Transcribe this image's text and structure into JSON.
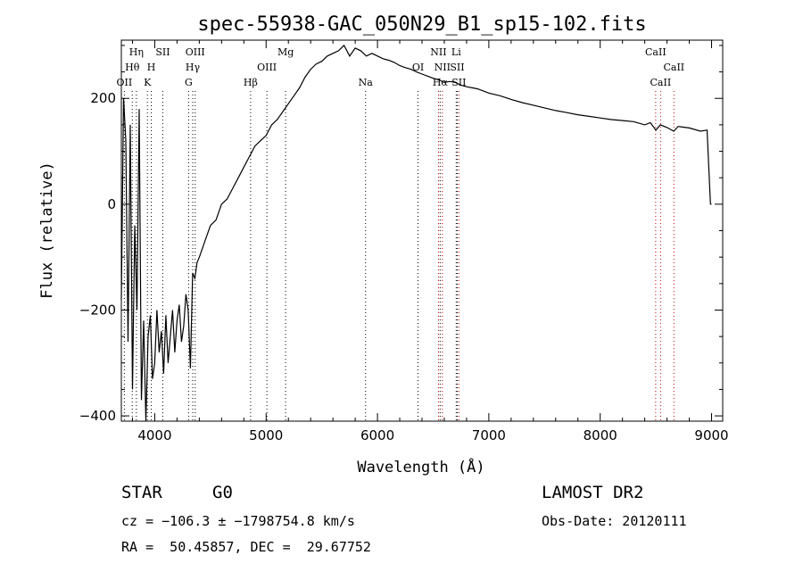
{
  "chart_data": {
    "type": "line",
    "title": "spec-55938-GAC_050N29_B1_sp15-102.fits",
    "xlabel": "Wavelength (Å)",
    "ylabel": "Flux (relative)",
    "xlim": [
      3700,
      9100
    ],
    "ylim": [
      -410,
      310
    ],
    "x_ticks": [
      4000,
      5000,
      6000,
      7000,
      8000,
      9000
    ],
    "y_ticks": [
      -400,
      -200,
      0,
      200
    ],
    "grid": false,
    "series": [
      {
        "x": [
          3700,
          3720,
          3740,
          3760,
          3780,
          3800,
          3820,
          3840,
          3860,
          3880,
          3900,
          3920,
          3940,
          3960,
          3980,
          4000,
          4020,
          4040,
          4060,
          4080,
          4100,
          4120,
          4140,
          4160,
          4180,
          4200,
          4220,
          4240,
          4260,
          4280,
          4300,
          4320,
          4340,
          4360,
          4380,
          4400,
          4450,
          4500,
          4550,
          4600,
          4650,
          4700,
          4750,
          4800,
          4850,
          4900,
          4950,
          5000,
          5050,
          5100,
          5150,
          5200,
          5250,
          5300,
          5350,
          5400,
          5450,
          5500,
          5550,
          5600,
          5650,
          5700,
          5750,
          5800,
          5850,
          5900,
          5950,
          6000,
          6050,
          6100,
          6150,
          6200,
          6250,
          6300,
          6350,
          6400,
          6450,
          6500,
          6550,
          6600,
          6650,
          6700,
          6750,
          6800,
          6850,
          6900,
          7000,
          7100,
          7200,
          7300,
          7400,
          7500,
          7600,
          7700,
          7800,
          7900,
          8000,
          8100,
          8200,
          8300,
          8400,
          8450,
          8500,
          8540,
          8600,
          8660,
          8700,
          8800,
          8900,
          8960,
          8990,
          9000
        ],
        "y": [
          -180,
          200,
          120,
          -260,
          150,
          -350,
          -40,
          -200,
          180,
          -370,
          -220,
          -410,
          -250,
          -210,
          -330,
          -300,
          -200,
          -280,
          -240,
          -320,
          -210,
          -300,
          -250,
          -200,
          -280,
          -220,
          -190,
          -260,
          -230,
          -170,
          -200,
          -310,
          -130,
          -140,
          -110,
          -100,
          -70,
          -40,
          -30,
          0,
          10,
          30,
          50,
          70,
          90,
          110,
          120,
          130,
          150,
          160,
          175,
          190,
          205,
          220,
          240,
          255,
          265,
          270,
          280,
          285,
          290,
          300,
          280,
          295,
          290,
          280,
          285,
          280,
          275,
          272,
          268,
          262,
          258,
          255,
          250,
          246,
          242,
          238,
          235,
          230,
          232,
          230,
          225,
          222,
          220,
          218,
          210,
          205,
          198,
          192,
          187,
          182,
          177,
          173,
          169,
          166,
          163,
          160,
          158,
          156,
          150,
          154,
          140,
          150,
          145,
          138,
          147,
          144,
          138,
          140,
          0,
          0
        ]
      }
    ],
    "lines": [
      {
        "name": "OII",
        "x": 3727,
        "row": 3,
        "color": "#000000"
      },
      {
        "name": "Hθ",
        "x": 3798,
        "row": 2,
        "color": "#000000"
      },
      {
        "name": "Hη",
        "x": 3835,
        "row": 1,
        "color": "#000000"
      },
      {
        "name": "K",
        "x": 3934,
        "row": 3,
        "color": "#000000"
      },
      {
        "name": "H",
        "x": 3969,
        "row": 2,
        "color": "#000000"
      },
      {
        "name": "SII",
        "x": 4072,
        "row": 1,
        "color": "#000000"
      },
      {
        "name": "G",
        "x": 4304,
        "row": 3,
        "color": "#000000"
      },
      {
        "name": "Hγ",
        "x": 4341,
        "row": 2,
        "color": "#000000"
      },
      {
        "name": "OIII",
        "x": 4363,
        "row": 1,
        "color": "#000000"
      },
      {
        "name": "Hβ",
        "x": 4861,
        "row": 3,
        "color": "#000000"
      },
      {
        "name": "OIII",
        "x": 5007,
        "row": 2,
        "color": "#000000"
      },
      {
        "name": "Mg",
        "x": 5175,
        "row": 1,
        "color": "#000000"
      },
      {
        "name": "Na",
        "x": 5893,
        "row": 3,
        "color": "#000000"
      },
      {
        "name": "OI",
        "x": 6364,
        "row": 2,
        "color": "#000000"
      },
      {
        "name": "NII",
        "x": 6548,
        "row": 1,
        "color": "#cc0000"
      },
      {
        "name": "Hα",
        "x": 6563,
        "row": 3,
        "color": "#000000"
      },
      {
        "name": "NII",
        "x": 6583,
        "row": 2,
        "color": "#cc0000"
      },
      {
        "name": "Li",
        "x": 6707,
        "row": 1,
        "color": "#000000"
      },
      {
        "name": "SII",
        "x": 6716,
        "row": 2,
        "color": "#000000"
      },
      {
        "name": "SII",
        "x": 6731,
        "row": 3,
        "color": "#cc0000"
      },
      {
        "name": "CaII",
        "x": 8498,
        "row": 1,
        "color": "#cc0000"
      },
      {
        "name": "CaII",
        "x": 8542,
        "row": 3,
        "color": "#cc0000"
      },
      {
        "name": "CaII",
        "x": 8662,
        "row": 2,
        "color": "#cc0000"
      }
    ]
  },
  "info": {
    "class_label": "STAR",
    "subclass": "G0",
    "survey": "LAMOST DR2",
    "cz": "cz = −106.3 ± −1798754.8 km/s",
    "obs_date": "Obs-Date: 20120111",
    "coords": "RA =  50.45857, DEC =  29.67752"
  }
}
